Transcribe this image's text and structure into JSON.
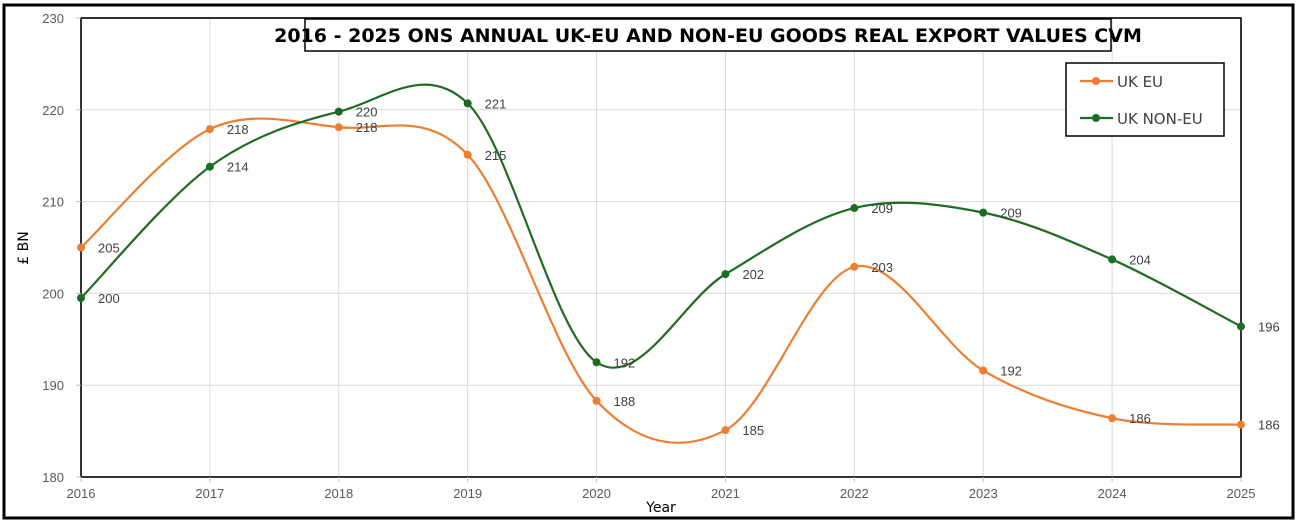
{
  "chart_data": {
    "type": "line",
    "title": "2016 - 2025 ONS ANNUAL UK-EU AND NON-EU GOODS REAL EXPORT VALUES CVM",
    "xlabel": "Year",
    "ylabel": "£ BN",
    "categories": [
      "2016",
      "2017",
      "2018",
      "2019",
      "2020",
      "2021",
      "2022",
      "2023",
      "2024",
      "2025"
    ],
    "ylim": [
      180,
      230
    ],
    "yticks": [
      180,
      190,
      200,
      210,
      220,
      230
    ],
    "grid": true,
    "smooth": true,
    "legend_position": "top-right",
    "series": [
      {
        "name": "UK EU",
        "color": "#ED7D31",
        "values": [
          205.0,
          217.9,
          218.1,
          215.1,
          188.3,
          185.1,
          202.9,
          191.6,
          186.4,
          185.7
        ],
        "labels": [
          "205",
          "218",
          "218",
          "215",
          "188",
          "185",
          "203",
          "192",
          "186",
          "186"
        ]
      },
      {
        "name": "UK NON-EU",
        "color": "#1E6B23",
        "values": [
          199.5,
          213.8,
          219.8,
          220.7,
          192.5,
          202.1,
          209.3,
          208.8,
          203.7,
          196.4
        ],
        "labels": [
          "200",
          "214",
          "220",
          "221",
          "192",
          "202",
          "209",
          "209",
          "204",
          "196"
        ]
      }
    ]
  }
}
